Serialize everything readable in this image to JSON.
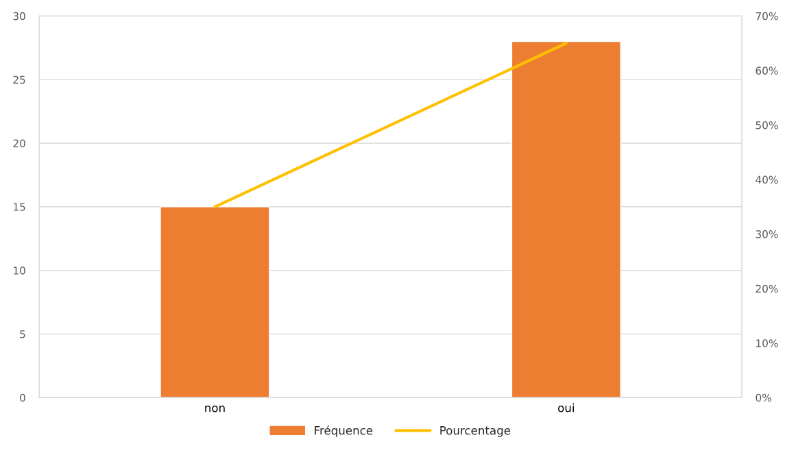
{
  "chart_data": {
    "type": "bar",
    "categories": [
      "non",
      "oui"
    ],
    "series": [
      {
        "name": "Fréquence",
        "color": "#ed7d31",
        "values": [
          15,
          28
        ]
      },
      {
        "name": "Pourcentage",
        "type": "line",
        "axis": "y2",
        "color": "#ffc000",
        "values": [
          35,
          65
        ]
      }
    ],
    "ylim": [
      0,
      30
    ],
    "yticks": [
      0,
      5,
      10,
      15,
      20,
      25,
      30
    ],
    "y2lim": [
      0,
      70
    ],
    "y2ticks": [
      {
        "value": 0,
        "label": "0%"
      },
      {
        "value": 10,
        "label": "10%"
      },
      {
        "value": 20,
        "label": "20%"
      },
      {
        "value": 30,
        "label": "30%"
      },
      {
        "value": 40,
        "label": "40%"
      },
      {
        "value": 50,
        "label": "50%"
      },
      {
        "value": 60,
        "label": "60%"
      },
      {
        "value": 70,
        "label": "70%"
      }
    ],
    "grid": "y",
    "legend": "bottom"
  }
}
